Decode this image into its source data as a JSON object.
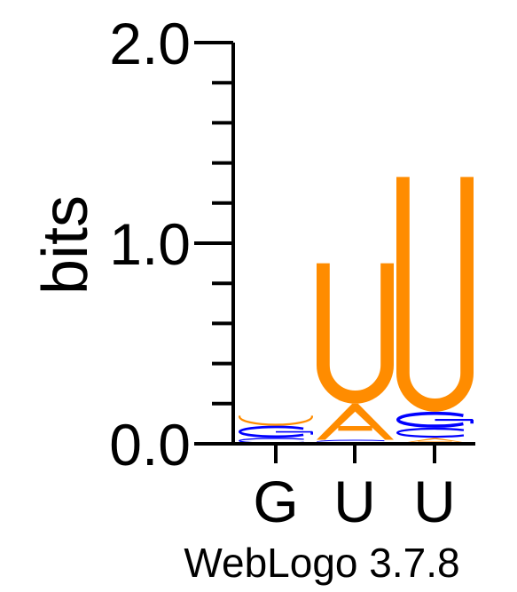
{
  "chart_data": {
    "type": "sequence-logo",
    "ylabel": "bits",
    "ylim": [
      0,
      2
    ],
    "yticks": [
      {
        "value": 0,
        "label": "0.0"
      },
      {
        "value": 1,
        "label": "1.0"
      },
      {
        "value": 2,
        "label": "2.0"
      }
    ],
    "minor_tick_step": 0.2,
    "positions": [
      {
        "label": "G",
        "stack": [
          {
            "letter": "C",
            "height": 0.03
          },
          {
            "letter": "G",
            "height": 0.06
          },
          {
            "letter": "U",
            "height": 0.05
          }
        ]
      },
      {
        "label": "U",
        "stack": [
          {
            "letter": "C",
            "height": 0.02
          },
          {
            "letter": "A",
            "height": 0.18
          },
          {
            "letter": "U",
            "height": 0.7
          }
        ]
      },
      {
        "label": "U",
        "stack": [
          {
            "letter": "A",
            "height": 0.03
          },
          {
            "letter": "C",
            "height": 0.05
          },
          {
            "letter": "G",
            "height": 0.08
          },
          {
            "letter": "U",
            "height": 1.17
          }
        ]
      }
    ],
    "colors": {
      "A": "#ff8c00",
      "U": "#ff8c00",
      "C": "#0000ff",
      "G": "#0000ff",
      "axis": "#000000"
    },
    "footer": "WebLogo 3.7.8"
  }
}
